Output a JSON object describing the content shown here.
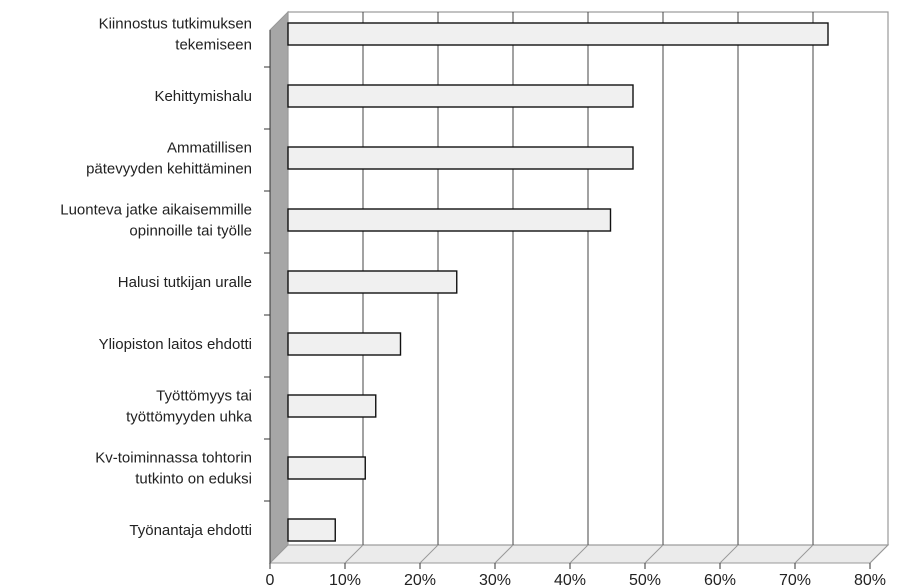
{
  "chart_data": {
    "type": "bar",
    "orientation": "horizontal",
    "style": "3d",
    "categories": [
      [
        "Kiinnostus tutkimuksen",
        "tekemiseen"
      ],
      [
        "Kehittymishalu"
      ],
      [
        "Ammatillisen",
        "pätevyyden kehittäminen"
      ],
      [
        "Luonteva jatke aikaisemmille",
        "opinnoille tai työlle"
      ],
      [
        "Halusi tutkijan uralle"
      ],
      [
        "Yliopiston laitos ehdotti"
      ],
      [
        "Työttömyys tai",
        "työttömyyden uhka"
      ],
      [
        "Kv-toiminnassa tohtorin",
        "tutkinto on eduksi"
      ],
      [
        "Työnantaja ehdotti"
      ]
    ],
    "values": [
      72,
      46,
      46,
      43,
      22.5,
      15,
      11.7,
      10.3,
      6.3
    ],
    "xlim": [
      0,
      80
    ],
    "xticks": [
      "0",
      "10%",
      "20%",
      "30%",
      "40%",
      "50%",
      "60%",
      "70%",
      "80%"
    ],
    "grid": true,
    "colors": {
      "bar_fill": "#f0f0f0",
      "bar_stroke": "#111111",
      "grid": "#444444",
      "wall_side": "#a6a6a6",
      "floor": "#ebebeb",
      "frame": "#999999"
    }
  }
}
